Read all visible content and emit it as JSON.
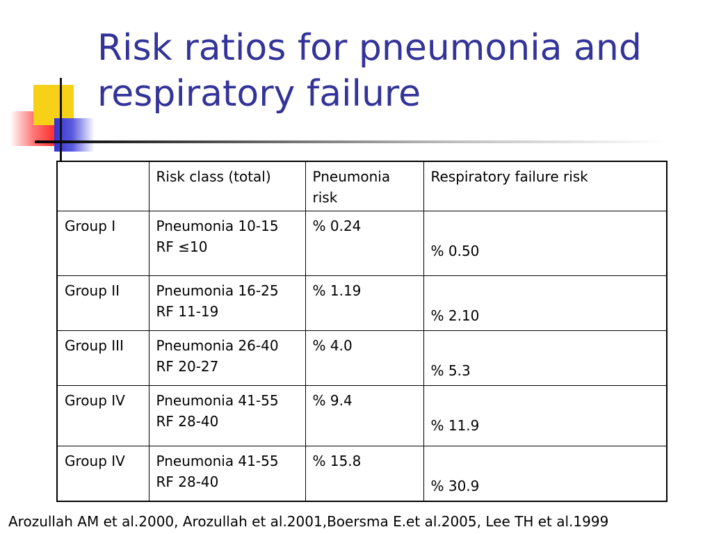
{
  "slide": {
    "title_line1": "Risk ratios for pneumonia and",
    "title_line2": "respiratory failure",
    "citation": "Arozullah AM et al.2000, Arozullah et al.2001,Boersma E.et al.2005, Lee TH et al.1999",
    "colors": {
      "title": "#333399",
      "deco_yellow": "#f7d117",
      "deco_blue": "#3333cc",
      "deco_red": "#ff2a2a"
    }
  },
  "table": {
    "headers": [
      "",
      "Risk class (total)",
      "Pneumonia risk",
      "Respiratory failure risk"
    ],
    "header_pneumonia_line1": "Pneumonia",
    "header_pneumonia_line2": "risk",
    "rows": [
      {
        "group": "Group I",
        "pneumonia_class": "Pneumonia 10-15",
        "rf_class": "RF ≤10",
        "pneumonia_risk": "% 0.24",
        "rf_risk": "% 0.50"
      },
      {
        "group": "Group II",
        "pneumonia_class": "Pneumonia 16-25",
        "rf_class": "RF 11-19",
        "pneumonia_risk": "% 1.19",
        "rf_risk": "% 2.10"
      },
      {
        "group": "Group III",
        "pneumonia_class": "Pneumonia 26-40",
        "rf_class": "RF 20-27",
        "pneumonia_risk": "% 4.0",
        "rf_risk": "% 5.3"
      },
      {
        "group": "Group IV",
        "pneumonia_class": "Pneumonia 41-55",
        "rf_class": "RF 28-40",
        "pneumonia_risk": "% 9.4",
        "rf_risk": "% 11.9"
      },
      {
        "group": "Group IV",
        "pneumonia_class": "Pneumonia 41-55",
        "rf_class": "RF 28-40",
        "pneumonia_risk": "% 15.8",
        "rf_risk": "% 30.9"
      }
    ]
  }
}
